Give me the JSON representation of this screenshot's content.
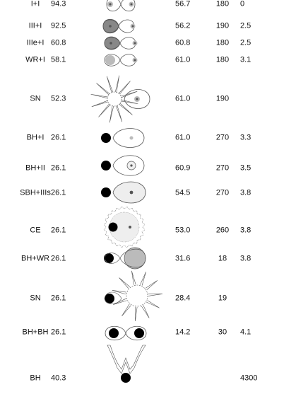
{
  "colors": {
    "ink": "#000000",
    "line": "#555555",
    "light_fill": "#eeeeee",
    "mid_fill": "#bbbbbb",
    "dark_fill": "#888888",
    "core": "#555555"
  },
  "rows": [
    {
      "label": "I+I",
      "a": "94.3",
      "b": "56.7",
      "c": "180",
      "d": "0",
      "icon": "binary-star-icon"
    },
    {
      "label": "III+I",
      "a": "92.5",
      "b": "56.2",
      "c": "190",
      "d": "2.5",
      "icon": "giant-star-binary-icon"
    },
    {
      "label": "IIIe+I",
      "a": "60.8",
      "b": "60.8",
      "c": "180",
      "d": "2.5",
      "icon": "expanded-giant-binary-icon"
    },
    {
      "label": "WR+I",
      "a": "58.1",
      "b": "61.0",
      "c": "180",
      "d": "3.1",
      "icon": "wolf-rayet-binary-icon"
    },
    {
      "label": "SN",
      "a": "52.3",
      "b": "61.0",
      "c": "190",
      "d": "",
      "icon": "supernova-icon"
    },
    {
      "label": "BH+I",
      "a": "26.1",
      "b": "61.0",
      "c": "270",
      "d": "3.3",
      "icon": "black-hole-binary-icon"
    },
    {
      "label": "BH+II",
      "a": "26.1",
      "b": "60.9",
      "c": "270",
      "d": "3.5",
      "icon": "black-hole-subgiant-icon"
    },
    {
      "label": "SBH+IIIs",
      "a": "26.1",
      "b": "54.5",
      "c": "270",
      "d": "3.8",
      "icon": "black-hole-giant-icon"
    },
    {
      "label": "CE",
      "a": "26.1",
      "b": "53.0",
      "c": "260",
      "d": "3.8",
      "icon": "common-envelope-icon"
    },
    {
      "label": "BH+WR",
      "a": "26.1",
      "b": "31.6",
      "c": "18",
      "d": "3.8",
      "icon": "black-hole-wolf-rayet-icon"
    },
    {
      "label": "SN",
      "a": "26.1",
      "b": "28.4",
      "c": "19",
      "d": "",
      "icon": "supernova-icon"
    },
    {
      "label": "BH+BH",
      "a": "26.1",
      "b": "14.2",
      "c": "30",
      "d": "4.1",
      "icon": "binary-black-hole-icon"
    },
    {
      "label": "BH",
      "a": "40.3",
      "b": "",
      "c": "",
      "d": "4300",
      "icon": "merged-black-hole-icon"
    }
  ]
}
